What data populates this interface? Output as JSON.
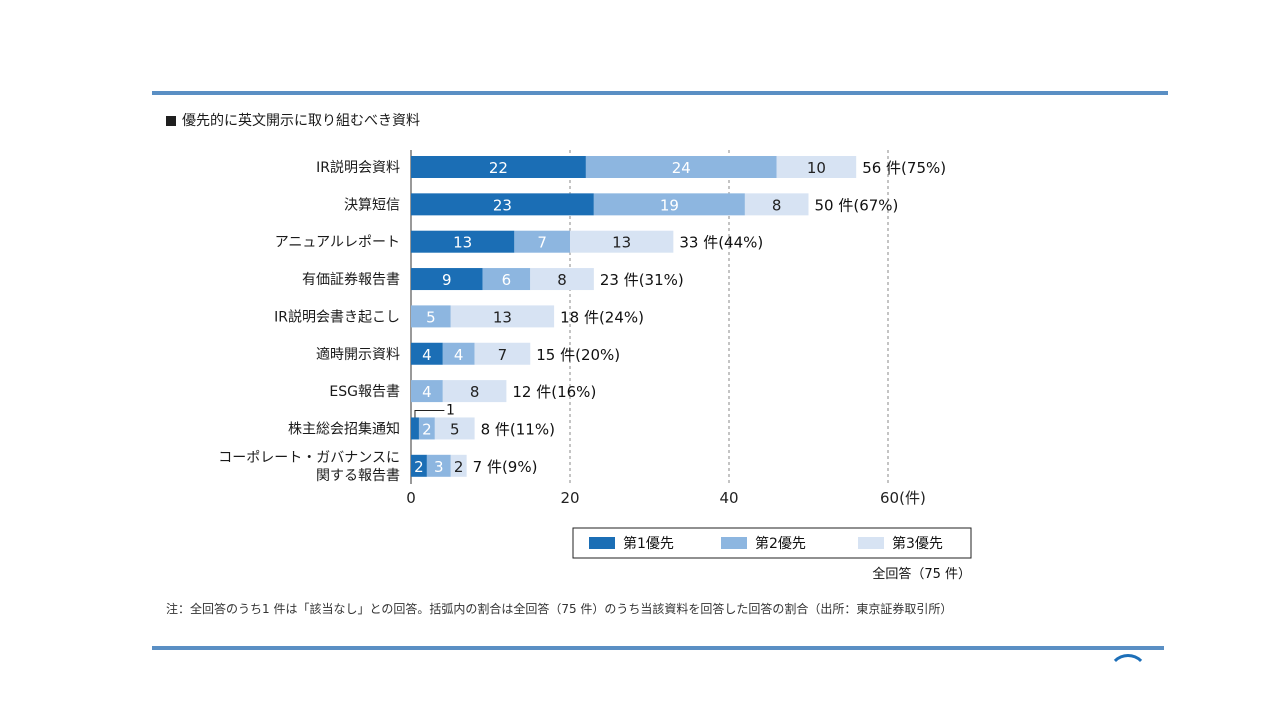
{
  "title": "優先的に英文開示に取り組むべき資料",
  "total_label": "全回答（75 件）",
  "note": "注：全回答のうち1 件は「該当なし」との回答。括弧内の割合は全回答（75 件）のうち当該資料を回答した回答の割合（出所：東京証券取引所）",
  "colors": {
    "p1": "#1b6eb5",
    "p2": "#8db6e0",
    "p3": "#d7e3f3",
    "rule": "#5a8fc4"
  },
  "chart_data": {
    "type": "bar",
    "orientation": "horizontal",
    "stacked": true,
    "categories": [
      "IR説明会資料",
      "決算短信",
      "アニュアルレポート",
      "有価証券報告書",
      "IR説明会書き起こし",
      "適時開示資料",
      "ESG報告書",
      "株主総会招集通知",
      "コーポレート・ガバナンスに関する報告書"
    ],
    "category_lines": [
      [
        "IR説明会資料"
      ],
      [
        "決算短信"
      ],
      [
        "アニュアルレポート"
      ],
      [
        "有価証券報告書"
      ],
      [
        "IR説明会書き起こし"
      ],
      [
        "適時開示資料"
      ],
      [
        "ESG報告書"
      ],
      [
        "株主総会招集通知"
      ],
      [
        "コーポレート・ガバナンスに",
        "関する報告書"
      ]
    ],
    "series": [
      {
        "name": "第1優先",
        "values": [
          22,
          23,
          13,
          9,
          0,
          4,
          0,
          1,
          2
        ]
      },
      {
        "name": "第2優先",
        "values": [
          24,
          19,
          7,
          6,
          5,
          4,
          4,
          2,
          3
        ]
      },
      {
        "name": "第3優先",
        "values": [
          10,
          8,
          13,
          8,
          13,
          7,
          8,
          5,
          2
        ]
      }
    ],
    "totals": [
      "56 件(75%)",
      "50 件(67%)",
      "33 件(44%)",
      "23 件(31%)",
      "18 件(24%)",
      "15 件(20%)",
      "12 件(16%)",
      "8 件(11%)",
      "7 件(9%)"
    ],
    "annotation": {
      "category_index": 7,
      "text": "1"
    },
    "xlim": [
      0,
      60
    ],
    "xticks": [
      "0",
      "20",
      "40",
      "60(件)"
    ],
    "xtick_values": [
      0,
      20,
      40,
      60
    ],
    "grid": "vertical dashed",
    "legend": [
      "第1優先",
      "第2優先",
      "第3優先"
    ],
    "legend_position": "bottom-right"
  }
}
